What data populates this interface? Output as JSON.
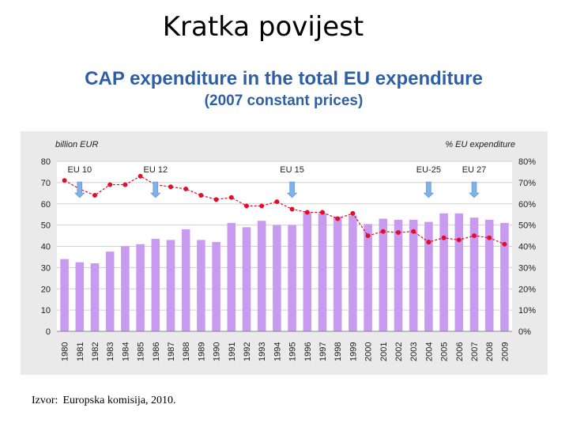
{
  "slide": {
    "title": "Kratka povijest"
  },
  "source": {
    "label": "Izvor:",
    "text": "Europska komisija, 2010."
  },
  "chart_data": {
    "type": "bar+line",
    "title": "CAP expenditure in the total EU expenditure",
    "subtitle": "(2007 constant prices)",
    "y_left_label": "billion EUR",
    "y_right_label": "% EU expenditure",
    "y_left_lim": [
      0,
      80
    ],
    "y_left_ticks": [
      "0",
      "10",
      "20",
      "30",
      "40",
      "50",
      "60",
      "70",
      "80"
    ],
    "y_right_lim": [
      0,
      80
    ],
    "y_right_ticks": [
      "0%",
      "10%",
      "20%",
      "30%",
      "40%",
      "50%",
      "60%",
      "70%",
      "80%"
    ],
    "categories": [
      "1980",
      "1981",
      "1982",
      "1983",
      "1984",
      "1985",
      "1986",
      "1987",
      "1988",
      "1989",
      "1990",
      "1991",
      "1992",
      "1993",
      "1994",
      "1995",
      "1996",
      "1997",
      "1998",
      "1999",
      "2000",
      "2001",
      "2002",
      "2003",
      "2004",
      "2005",
      "2006",
      "2007",
      "2008",
      "2009"
    ],
    "series": [
      {
        "name": "CAP expenditure (billion EUR)",
        "kind": "bar",
        "axis": "left",
        "color": "#c89bf0",
        "values": [
          34,
          32.5,
          32,
          37.5,
          40,
          41,
          43.5,
          43,
          48,
          43,
          42,
          51,
          49,
          52,
          50,
          50,
          56,
          55.5,
          54,
          54.5,
          50.5,
          53,
          52.5,
          52.5,
          51.5,
          55.5,
          55.5,
          53.5,
          52.5,
          51
        ]
      },
      {
        "name": "% EU expenditure",
        "kind": "line",
        "axis": "right",
        "color": "#e0102a",
        "values": [
          71,
          67,
          64,
          69,
          69,
          73,
          69,
          68,
          67,
          64,
          62,
          63,
          59,
          59,
          61,
          57.5,
          56,
          56,
          53,
          55.5,
          45,
          47,
          46.5,
          47,
          42,
          44,
          43,
          45,
          44,
          41
        ]
      }
    ],
    "annotations": [
      {
        "label": "EU 10",
        "category": "1981"
      },
      {
        "label": "EU 12",
        "category": "1986"
      },
      {
        "label": "EU 15",
        "category": "1995"
      },
      {
        "label": "EU-25",
        "category": "2004"
      },
      {
        "label": "EU 27",
        "category": "2007"
      }
    ],
    "arrow_color": "#7fb2e8"
  }
}
